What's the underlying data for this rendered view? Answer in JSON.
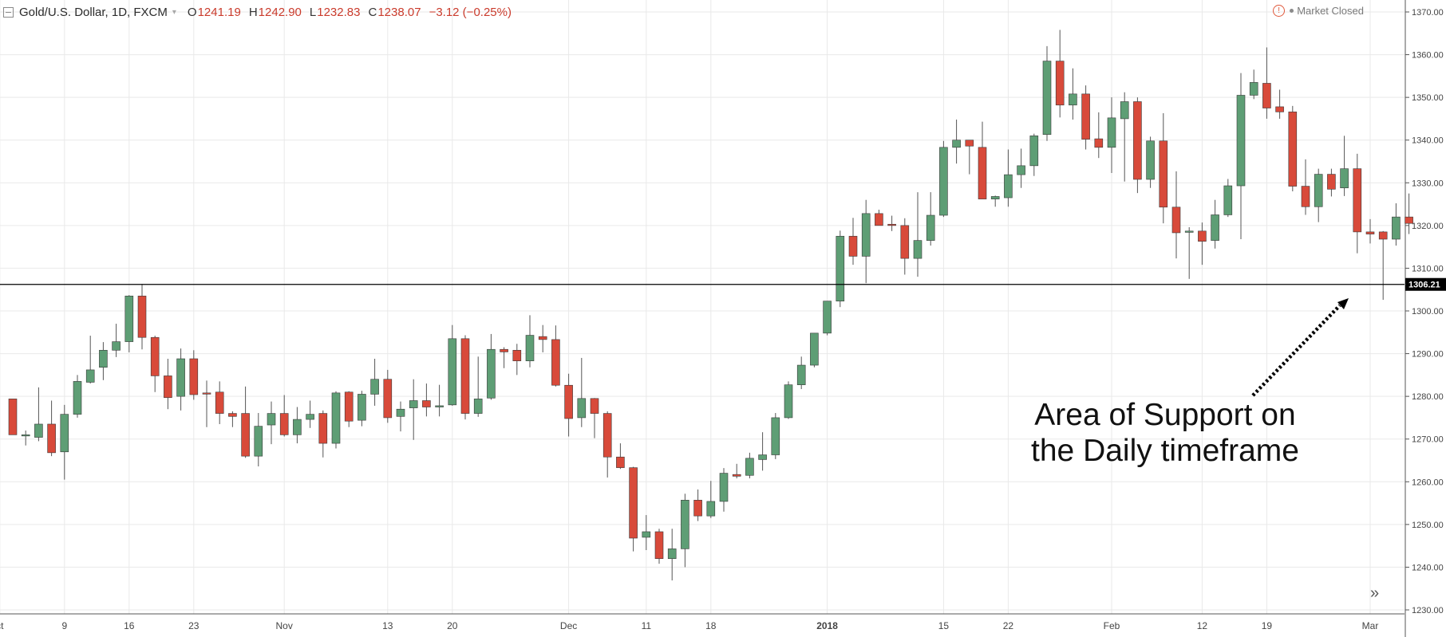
{
  "header": {
    "symbol": "Gold/U.S. Dollar, 1D, FXCM",
    "caret": "▾",
    "open_label": "O",
    "open_value": "1241.19",
    "high_label": "H",
    "high_value": "1242.90",
    "low_label": "L",
    "low_value": "1232.83",
    "close_label": "C",
    "close_value": "1238.07",
    "change": "−3.12 (−0.25%)"
  },
  "market_status": {
    "icon": "!",
    "label": "Market Closed"
  },
  "annotation": {
    "text": "Area of Support on\nthe Daily timeframe"
  },
  "scroll_button": "»",
  "colors": {
    "up": "#5e9e75",
    "down": "#d84a3a",
    "wick": "#555555",
    "grid": "#e9e9e9",
    "support": "#000000"
  },
  "chart_data": {
    "type": "candlestick",
    "y_ticks": [
      "1230.00",
      "1240.00",
      "1250.00",
      "1260.00",
      "1270.00",
      "1280.00",
      "1290.00",
      "1300.00",
      "1310.00",
      "1320.00",
      "1330.00",
      "1340.00",
      "1350.00",
      "1360.00",
      "1370.00"
    ],
    "ylim": [
      1230,
      1370
    ],
    "support_line": {
      "value": 1306.21,
      "label": "1306.21"
    },
    "x_ticks": [
      {
        "index": -1,
        "label": "ct"
      },
      {
        "index": 4,
        "label": "9"
      },
      {
        "index": 9,
        "label": "16"
      },
      {
        "index": 14,
        "label": "23"
      },
      {
        "index": 21,
        "label": "Nov"
      },
      {
        "index": 29,
        "label": "13"
      },
      {
        "index": 34,
        "label": "20"
      },
      {
        "index": 43,
        "label": "Dec"
      },
      {
        "index": 49,
        "label": "11"
      },
      {
        "index": 54,
        "label": "18"
      },
      {
        "index": 63,
        "label": "2018",
        "bold": true
      },
      {
        "index": 72,
        "label": "15"
      },
      {
        "index": 77,
        "label": "22"
      },
      {
        "index": 85,
        "label": "Feb"
      },
      {
        "index": 92,
        "label": "12"
      },
      {
        "index": 97,
        "label": "19"
      },
      {
        "index": 105,
        "label": "Mar"
      }
    ],
    "candles": [
      {
        "o": 1279.4,
        "h": 1279.4,
        "l": 1271.0,
        "c": 1271.0
      },
      {
        "o": 1271.0,
        "h": 1272.0,
        "l": 1268.5,
        "c": 1271.0
      },
      {
        "o": 1270.4,
        "h": 1282.1,
        "l": 1269.5,
        "c": 1273.5
      },
      {
        "o": 1273.5,
        "h": 1279.0,
        "l": 1266.0,
        "c": 1266.8
      },
      {
        "o": 1267.0,
        "h": 1278.0,
        "l": 1260.5,
        "c": 1275.8
      },
      {
        "o": 1275.8,
        "h": 1285.0,
        "l": 1275.0,
        "c": 1283.5
      },
      {
        "o": 1283.3,
        "h": 1294.2,
        "l": 1283.0,
        "c": 1286.2
      },
      {
        "o": 1286.8,
        "h": 1292.7,
        "l": 1283.8,
        "c": 1290.8
      },
      {
        "o": 1290.8,
        "h": 1297.0,
        "l": 1289.2,
        "c": 1292.8
      },
      {
        "o": 1292.8,
        "h": 1303.7,
        "l": 1290.3,
        "c": 1303.5
      },
      {
        "o": 1303.5,
        "h": 1306.3,
        "l": 1291.0,
        "c": 1293.8
      },
      {
        "o": 1293.8,
        "h": 1294.2,
        "l": 1281.0,
        "c": 1284.8
      },
      {
        "o": 1284.8,
        "h": 1288.8,
        "l": 1277.0,
        "c": 1279.7
      },
      {
        "o": 1280.0,
        "h": 1291.2,
        "l": 1276.7,
        "c": 1288.8
      },
      {
        "o": 1288.8,
        "h": 1290.8,
        "l": 1279.2,
        "c": 1280.4
      },
      {
        "o": 1280.8,
        "h": 1283.7,
        "l": 1272.8,
        "c": 1280.6
      },
      {
        "o": 1281.0,
        "h": 1283.5,
        "l": 1273.5,
        "c": 1276.0
      },
      {
        "o": 1276.0,
        "h": 1276.5,
        "l": 1272.8,
        "c": 1275.3
      },
      {
        "o": 1276.0,
        "h": 1282.3,
        "l": 1265.6,
        "c": 1266.0
      },
      {
        "o": 1266.0,
        "h": 1276.1,
        "l": 1263.6,
        "c": 1273.0
      },
      {
        "o": 1273.3,
        "h": 1278.8,
        "l": 1268.8,
        "c": 1276.0
      },
      {
        "o": 1276.0,
        "h": 1280.3,
        "l": 1270.6,
        "c": 1271.0
      },
      {
        "o": 1271.0,
        "h": 1277.5,
        "l": 1269.0,
        "c": 1274.6
      },
      {
        "o": 1274.6,
        "h": 1279.0,
        "l": 1272.6,
        "c": 1275.8
      },
      {
        "o": 1276.0,
        "h": 1276.7,
        "l": 1265.7,
        "c": 1269.0
      },
      {
        "o": 1269.0,
        "h": 1281.2,
        "l": 1267.8,
        "c": 1280.8
      },
      {
        "o": 1281.0,
        "h": 1281.2,
        "l": 1272.8,
        "c": 1274.2
      },
      {
        "o": 1274.4,
        "h": 1281.3,
        "l": 1273.0,
        "c": 1280.5
      },
      {
        "o": 1280.5,
        "h": 1288.8,
        "l": 1277.8,
        "c": 1284.0
      },
      {
        "o": 1284.0,
        "h": 1286.2,
        "l": 1273.8,
        "c": 1275.0
      },
      {
        "o": 1275.3,
        "h": 1278.8,
        "l": 1271.8,
        "c": 1277.0
      },
      {
        "o": 1277.3,
        "h": 1284.0,
        "l": 1269.8,
        "c": 1279.0
      },
      {
        "o": 1279.0,
        "h": 1283.0,
        "l": 1275.3,
        "c": 1277.5
      },
      {
        "o": 1277.5,
        "h": 1282.7,
        "l": 1275.3,
        "c": 1277.8
      },
      {
        "o": 1278.0,
        "h": 1296.7,
        "l": 1277.8,
        "c": 1293.5
      },
      {
        "o": 1293.5,
        "h": 1294.3,
        "l": 1274.6,
        "c": 1276.0
      },
      {
        "o": 1276.0,
        "h": 1289.3,
        "l": 1275.2,
        "c": 1279.4
      },
      {
        "o": 1279.6,
        "h": 1294.6,
        "l": 1279.2,
        "c": 1291.0
      },
      {
        "o": 1291.0,
        "h": 1291.5,
        "l": 1286.6,
        "c": 1290.4
      },
      {
        "o": 1290.8,
        "h": 1292.3,
        "l": 1285.0,
        "c": 1288.3
      },
      {
        "o": 1288.3,
        "h": 1299.0,
        "l": 1286.8,
        "c": 1294.3
      },
      {
        "o": 1294.0,
        "h": 1296.7,
        "l": 1290.3,
        "c": 1293.3
      },
      {
        "o": 1293.3,
        "h": 1296.6,
        "l": 1282.3,
        "c": 1282.6
      },
      {
        "o": 1282.6,
        "h": 1285.3,
        "l": 1270.6,
        "c": 1274.8
      },
      {
        "o": 1275.0,
        "h": 1289.0,
        "l": 1272.8,
        "c": 1279.5
      },
      {
        "o": 1279.5,
        "h": 1279.6,
        "l": 1270.2,
        "c": 1276.0
      },
      {
        "o": 1276.0,
        "h": 1276.5,
        "l": 1261.0,
        "c": 1265.8
      },
      {
        "o": 1265.8,
        "h": 1269.0,
        "l": 1263.0,
        "c": 1263.3
      },
      {
        "o": 1263.3,
        "h": 1263.5,
        "l": 1243.7,
        "c": 1246.8
      },
      {
        "o": 1247.0,
        "h": 1252.2,
        "l": 1244.0,
        "c": 1248.3
      },
      {
        "o": 1248.3,
        "h": 1249.0,
        "l": 1240.8,
        "c": 1242.0
      },
      {
        "o": 1242.0,
        "h": 1249.0,
        "l": 1236.9,
        "c": 1244.3
      },
      {
        "o": 1244.3,
        "h": 1257.2,
        "l": 1240.0,
        "c": 1255.7
      },
      {
        "o": 1255.7,
        "h": 1258.2,
        "l": 1250.8,
        "c": 1252.0
      },
      {
        "o": 1252.0,
        "h": 1260.2,
        "l": 1251.5,
        "c": 1255.4
      },
      {
        "o": 1255.4,
        "h": 1263.2,
        "l": 1253.0,
        "c": 1262.0
      },
      {
        "o": 1261.7,
        "h": 1264.2,
        "l": 1260.8,
        "c": 1261.3
      },
      {
        "o": 1261.5,
        "h": 1266.8,
        "l": 1260.8,
        "c": 1265.5
      },
      {
        "o": 1265.2,
        "h": 1271.6,
        "l": 1262.6,
        "c": 1266.3
      },
      {
        "o": 1266.3,
        "h": 1276.1,
        "l": 1265.3,
        "c": 1275.0
      },
      {
        "o": 1275.0,
        "h": 1283.5,
        "l": 1274.7,
        "c": 1282.7
      },
      {
        "o": 1282.7,
        "h": 1289.3,
        "l": 1281.7,
        "c": 1287.3
      },
      {
        "o": 1287.3,
        "h": 1294.8,
        "l": 1286.8,
        "c": 1294.8
      },
      {
        "o": 1294.8,
        "h": 1301.1,
        "l": 1294.3,
        "c": 1302.3
      },
      {
        "o": 1302.3,
        "h": 1318.8,
        "l": 1300.9,
        "c": 1317.5
      },
      {
        "o": 1317.5,
        "h": 1321.8,
        "l": 1310.8,
        "c": 1312.8
      },
      {
        "o": 1312.8,
        "h": 1326.0,
        "l": 1306.5,
        "c": 1322.8
      },
      {
        "o": 1322.8,
        "h": 1323.7,
        "l": 1320.0,
        "c": 1320.0
      },
      {
        "o": 1320.3,
        "h": 1322.3,
        "l": 1318.7,
        "c": 1320.0
      },
      {
        "o": 1320.0,
        "h": 1321.7,
        "l": 1308.5,
        "c": 1312.3
      },
      {
        "o": 1312.3,
        "h": 1327.8,
        "l": 1308.0,
        "c": 1316.5
      },
      {
        "o": 1316.5,
        "h": 1327.8,
        "l": 1315.3,
        "c": 1322.4
      },
      {
        "o": 1322.4,
        "h": 1339.8,
        "l": 1322.0,
        "c": 1338.3
      },
      {
        "o": 1338.3,
        "h": 1344.8,
        "l": 1334.5,
        "c": 1340.0
      },
      {
        "o": 1340.0,
        "h": 1339.8,
        "l": 1332.0,
        "c": 1338.6
      },
      {
        "o": 1338.3,
        "h": 1344.3,
        "l": 1326.4,
        "c": 1326.2
      },
      {
        "o": 1326.2,
        "h": 1327.0,
        "l": 1324.4,
        "c": 1326.8
      },
      {
        "o": 1326.5,
        "h": 1337.8,
        "l": 1324.4,
        "c": 1331.9
      },
      {
        "o": 1331.9,
        "h": 1338.0,
        "l": 1328.8,
        "c": 1334.0
      },
      {
        "o": 1334.0,
        "h": 1341.5,
        "l": 1331.6,
        "c": 1341.0
      },
      {
        "o": 1341.3,
        "h": 1362.0,
        "l": 1339.8,
        "c": 1358.5
      },
      {
        "o": 1358.5,
        "h": 1365.8,
        "l": 1345.3,
        "c": 1348.2
      },
      {
        "o": 1348.2,
        "h": 1356.8,
        "l": 1344.8,
        "c": 1350.8
      },
      {
        "o": 1350.8,
        "h": 1352.8,
        "l": 1337.8,
        "c": 1340.2
      },
      {
        "o": 1340.3,
        "h": 1346.5,
        "l": 1335.8,
        "c": 1338.3
      },
      {
        "o": 1338.3,
        "h": 1350.0,
        "l": 1332.3,
        "c": 1345.2
      },
      {
        "o": 1345.0,
        "h": 1351.2,
        "l": 1330.3,
        "c": 1349.0
      },
      {
        "o": 1349.0,
        "h": 1350.0,
        "l": 1327.6,
        "c": 1330.8
      },
      {
        "o": 1330.8,
        "h": 1340.8,
        "l": 1328.8,
        "c": 1339.8
      },
      {
        "o": 1339.8,
        "h": 1346.3,
        "l": 1320.5,
        "c": 1324.3
      },
      {
        "o": 1324.3,
        "h": 1332.7,
        "l": 1312.3,
        "c": 1318.3
      },
      {
        "o": 1318.4,
        "h": 1319.6,
        "l": 1307.5,
        "c": 1318.7
      },
      {
        "o": 1318.7,
        "h": 1320.7,
        "l": 1310.8,
        "c": 1316.3
      },
      {
        "o": 1316.5,
        "h": 1326.0,
        "l": 1314.6,
        "c": 1322.5
      },
      {
        "o": 1322.5,
        "h": 1330.9,
        "l": 1322.0,
        "c": 1329.3
      },
      {
        "o": 1329.3,
        "h": 1355.7,
        "l": 1316.8,
        "c": 1350.5
      },
      {
        "o": 1350.5,
        "h": 1356.5,
        "l": 1349.6,
        "c": 1353.5
      },
      {
        "o": 1353.3,
        "h": 1361.7,
        "l": 1345.0,
        "c": 1347.5
      },
      {
        "o": 1347.8,
        "h": 1351.8,
        "l": 1345.0,
        "c": 1346.6
      },
      {
        "o": 1346.6,
        "h": 1348.0,
        "l": 1328.0,
        "c": 1329.2
      },
      {
        "o": 1329.2,
        "h": 1335.5,
        "l": 1322.5,
        "c": 1324.4
      },
      {
        "o": 1324.4,
        "h": 1333.3,
        "l": 1320.8,
        "c": 1332.0
      },
      {
        "o": 1332.0,
        "h": 1333.3,
        "l": 1326.8,
        "c": 1328.5
      },
      {
        "o": 1328.8,
        "h": 1341.0,
        "l": 1326.9,
        "c": 1333.3
      },
      {
        "o": 1333.3,
        "h": 1336.8,
        "l": 1313.5,
        "c": 1318.5
      },
      {
        "o": 1318.5,
        "h": 1321.5,
        "l": 1315.8,
        "c": 1318.0
      },
      {
        "o": 1318.5,
        "h": 1318.7,
        "l": 1302.6,
        "c": 1316.8
      },
      {
        "o": 1316.8,
        "h": 1325.2,
        "l": 1315.3,
        "c": 1322.0
      },
      {
        "o": 1322.0,
        "h": 1327.5,
        "l": 1318.0,
        "c": 1320.5
      }
    ]
  }
}
